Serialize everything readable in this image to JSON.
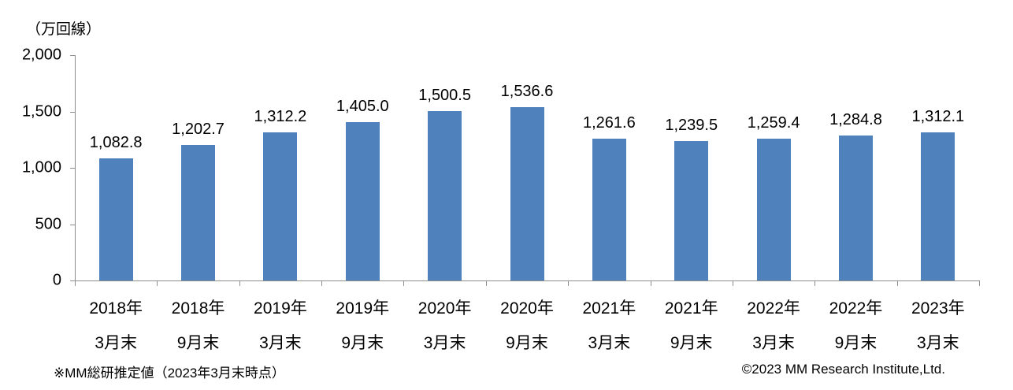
{
  "chart_data": {
    "type": "bar",
    "unit_label": "（万回線）",
    "categories": [
      {
        "line1": "2018年",
        "line2": "3月末"
      },
      {
        "line1": "2018年",
        "line2": "9月末"
      },
      {
        "line1": "2019年",
        "line2": "3月末"
      },
      {
        "line1": "2019年",
        "line2": "9月末"
      },
      {
        "line1": "2020年",
        "line2": "3月末"
      },
      {
        "line1": "2020年",
        "line2": "9月末"
      },
      {
        "line1": "2021年",
        "line2": "3月末"
      },
      {
        "line1": "2021年",
        "line2": "9月末"
      },
      {
        "line1": "2022年",
        "line2": "3月末"
      },
      {
        "line1": "2022年",
        "line2": "9月末"
      },
      {
        "line1": "2023年",
        "line2": "3月末"
      }
    ],
    "values": [
      1082.8,
      1202.7,
      1312.2,
      1405.0,
      1500.5,
      1536.6,
      1261.6,
      1239.5,
      1259.4,
      1284.8,
      1312.1
    ],
    "value_labels": [
      "1,082.8",
      "1,202.7",
      "1,312.2",
      "1,405.0",
      "1,500.5",
      "1,536.6",
      "1,261.6",
      "1,239.5",
      "1,259.4",
      "1,284.8",
      "1,312.1"
    ],
    "ylim": [
      0,
      2000
    ],
    "yticks": [
      0,
      500,
      1000,
      1500,
      2000
    ],
    "ytick_labels": [
      "0",
      "500",
      "1,000",
      "1,500",
      "2,000"
    ],
    "xlabel": "",
    "ylabel": "",
    "title": "",
    "grid": false,
    "legend_position": "none",
    "bar_color": "#4F81BD",
    "axis_color": "#8e8e8e",
    "text_color": "#000000"
  },
  "footer": {
    "note": "※MM総研推定値（2023年3月末時点）",
    "copyright": "©2023 MM Research Institute,Ltd."
  }
}
